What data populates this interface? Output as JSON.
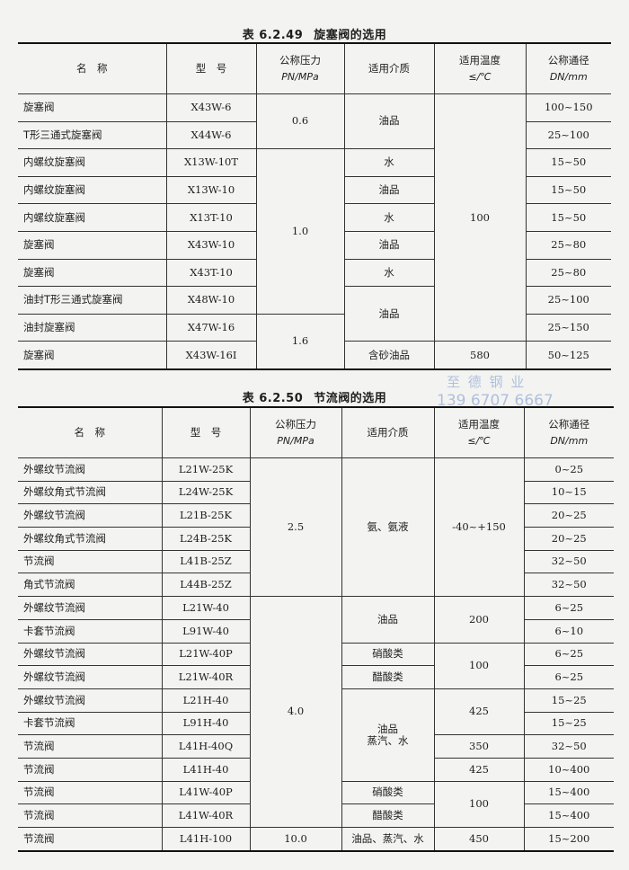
{
  "watermark": {
    "company": "至 德 钢 业",
    "phone": "139 6707 6667"
  },
  "headers": {
    "name": "名　称",
    "model": "型　号",
    "pressure": "公称压力",
    "pressure_unit": "PN/MPa",
    "medium": "适用介质",
    "temp": "适用温度",
    "temp_unit": "≤/℃",
    "dn": "公称通径",
    "dn_unit": "DN/mm"
  },
  "table1": {
    "number": "表 6.2.49",
    "caption": "旋塞阀的选用",
    "rows": [
      {
        "name": "旋塞阀",
        "model": "X43W-6",
        "dn": "100~150"
      },
      {
        "name": "T形三通式旋塞阀",
        "model": "X44W-6",
        "dn": "25~100"
      },
      {
        "name": "内螺纹旋塞阀",
        "model": "X13W-10T",
        "dn": "15~50"
      },
      {
        "name": "内螺纹旋塞阀",
        "model": "X13W-10",
        "dn": "15~50"
      },
      {
        "name": "内螺纹旋塞阀",
        "model": "X13T-10",
        "dn": "15~50"
      },
      {
        "name": "旋塞阀",
        "model": "X43W-10",
        "dn": "25~80"
      },
      {
        "name": "旋塞阀",
        "model": "X43T-10",
        "dn": "25~80"
      },
      {
        "name": "油封T形三通式旋塞阀",
        "model": "X48W-10",
        "dn": "25~100"
      },
      {
        "name": "油封旋塞阀",
        "model": "X47W-16",
        "dn": "25~150"
      },
      {
        "name": "旋塞阀",
        "model": "X43W-16I",
        "dn": "50~125"
      }
    ],
    "pressure": [
      {
        "value": "0.6",
        "rows": 2
      },
      {
        "value": "1.0",
        "rows": 6
      },
      {
        "value": "1.6",
        "rows": 2
      }
    ],
    "medium": [
      {
        "value": "油品",
        "rows": 2
      },
      {
        "value": "水",
        "rows": 1
      },
      {
        "value": "油品",
        "rows": 1
      },
      {
        "value": "水",
        "rows": 1
      },
      {
        "value": "油品",
        "rows": 1
      },
      {
        "value": "水",
        "rows": 1
      },
      {
        "value": "油品",
        "rows": 2
      },
      {
        "value": "含砂油品",
        "rows": 1
      }
    ],
    "temp": [
      {
        "value": "100",
        "rows": 9
      },
      {
        "value": "580",
        "rows": 1
      }
    ]
  },
  "table2": {
    "number": "表 6.2.50",
    "caption": "节流阀的选用",
    "rows": [
      {
        "name": "外螺纹节流阀",
        "model": "L21W-25K",
        "dn": "0~25"
      },
      {
        "name": "外螺纹角式节流阀",
        "model": "L24W-25K",
        "dn": "10~15"
      },
      {
        "name": "外螺纹节流阀",
        "model": "L21B-25K",
        "dn": "20~25"
      },
      {
        "name": "外螺纹角式节流阀",
        "model": "L24B-25K",
        "dn": "20~25"
      },
      {
        "name": "节流阀",
        "model": "L41B-25Z",
        "dn": "32~50"
      },
      {
        "name": "角式节流阀",
        "model": "L44B-25Z",
        "dn": "32~50"
      },
      {
        "name": "外螺纹节流阀",
        "model": "L21W-40",
        "dn": "6~25"
      },
      {
        "name": "卡套节流阀",
        "model": "L91W-40",
        "dn": "6~10"
      },
      {
        "name": "外螺纹节流阀",
        "model": "L21W-40P",
        "dn": "6~25"
      },
      {
        "name": "外螺纹节流阀",
        "model": "L21W-40R",
        "dn": "6~25"
      },
      {
        "name": "外螺纹节流阀",
        "model": "L21H-40",
        "dn": "15~25"
      },
      {
        "name": "卡套节流阀",
        "model": "L91H-40",
        "dn": "15~25"
      },
      {
        "name": "节流阀",
        "model": "L41H-40Q",
        "dn": "32~50"
      },
      {
        "name": "节流阀",
        "model": "L41H-40",
        "dn": "10~400"
      },
      {
        "name": "节流阀",
        "model": "L41W-40P",
        "dn": "15~400"
      },
      {
        "name": "节流阀",
        "model": "L41W-40R",
        "dn": "15~400"
      },
      {
        "name": "节流阀",
        "model": "L41H-100",
        "dn": "15~200"
      }
    ],
    "pressure": [
      {
        "value": "2.5",
        "rows": 6
      },
      {
        "value": "4.0",
        "rows": 10
      },
      {
        "value": "10.0",
        "rows": 1
      }
    ],
    "medium": [
      {
        "value": "氨、氨液",
        "rows": 6
      },
      {
        "value": "油品",
        "rows": 2
      },
      {
        "value": "硝酸类",
        "rows": 1
      },
      {
        "value": "醋酸类",
        "rows": 1
      },
      {
        "value": "油品\n蒸汽、水",
        "rows": 4
      },
      {
        "value": "硝酸类",
        "rows": 1
      },
      {
        "value": "醋酸类",
        "rows": 1
      },
      {
        "value": "油品、蒸汽、水",
        "rows": 1
      }
    ],
    "temp": [
      {
        "value": "-40~+150",
        "rows": 6
      },
      {
        "value": "200",
        "rows": 2
      },
      {
        "value": "100",
        "rows": 2
      },
      {
        "value": "425",
        "rows": 2
      },
      {
        "value": "350",
        "rows": 1
      },
      {
        "value": "425",
        "rows": 1
      },
      {
        "value": "100",
        "rows": 2
      },
      {
        "value": "450",
        "rows": 1
      }
    ]
  }
}
